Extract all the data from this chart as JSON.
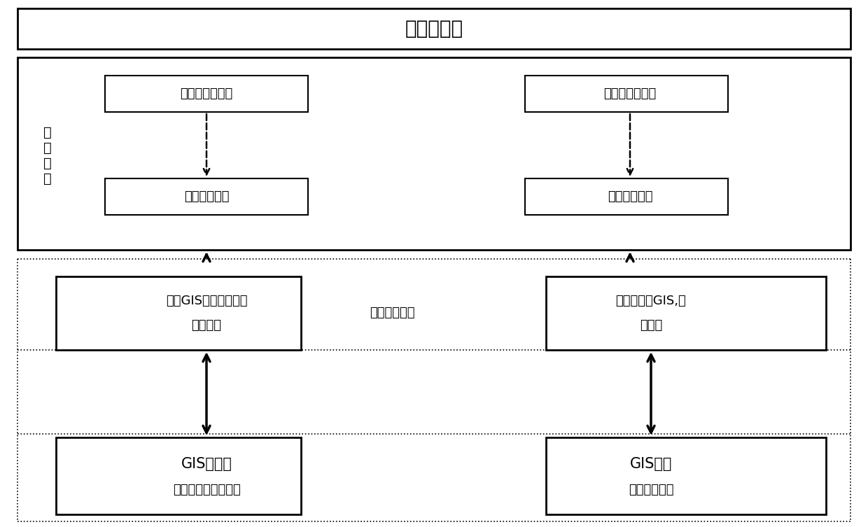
{
  "box_top": "模型库体系",
  "parallel_label": "并\n行\n结\n构",
  "box_2d_hydro": "二维水动力模型",
  "box_2d_water": "二维水质模型",
  "box_3d_hydro": "三维水动力模型",
  "box_3d_water": "三维水质模型",
  "box_gis_get_line1": "获取GIS数据，初始化",
  "box_gis_get_line2": "调用模型",
  "box_gis_out_line1": "输出数据到GIS,复",
  "box_gis_out_line2": "位模型",
  "middle_label": "模型管理技术",
  "box_gis_db_line1": "GIS数据库",
  "box_gis_db_line2": "选择参数、边界条件",
  "box_gis_comp_line1": "GIS组件",
  "box_gis_comp_line2": "数据结果输出",
  "bg_color": "#ffffff",
  "box_color": "#ffffff",
  "border_color": "#000000",
  "text_color": "#000000"
}
